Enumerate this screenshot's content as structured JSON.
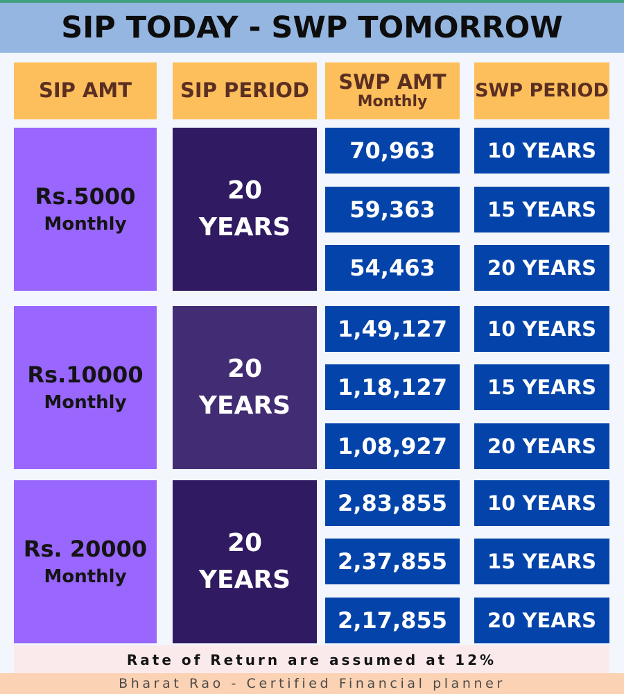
{
  "title": "SIP TODAY - SWP TOMORROW",
  "headers": {
    "sip_amt": "SIP AMT",
    "sip_period": "SIP PERIOD",
    "swp_amt": "SWP AMT",
    "swp_amt_sub": "Monthly",
    "swp_period": "SWP PERIOD"
  },
  "groups": [
    {
      "sip_amount": "Rs.5000",
      "sip_frequency": "Monthly",
      "sip_period_number": "20",
      "sip_period_unit": "YEARS",
      "rows": [
        {
          "swp_amount": "70,963",
          "swp_period": "10 YEARS"
        },
        {
          "swp_amount": "59,363",
          "swp_period": "15 YEARS"
        },
        {
          "swp_amount": "54,463",
          "swp_period": "20 YEARS"
        }
      ]
    },
    {
      "sip_amount": "Rs.10000",
      "sip_frequency": "Monthly",
      "sip_period_number": "20",
      "sip_period_unit": "YEARS",
      "rows": [
        {
          "swp_amount": "1,49,127",
          "swp_period": "10 YEARS"
        },
        {
          "swp_amount": "1,18,127",
          "swp_period": "15 YEARS"
        },
        {
          "swp_amount": "1,08,927",
          "swp_period": "20 YEARS"
        }
      ]
    },
    {
      "sip_amount": "Rs. 20000",
      "sip_frequency": "Monthly",
      "sip_period_number": "20",
      "sip_period_unit": "YEARS",
      "rows": [
        {
          "swp_amount": "2,83,855",
          "swp_period": "10 YEARS"
        },
        {
          "swp_amount": "2,37,855",
          "swp_period": "15 YEARS"
        },
        {
          "swp_amount": "2,17,855",
          "swp_period": "20 YEARS"
        }
      ]
    }
  ],
  "note": "Rate of Return are assumed at 12%",
  "footer": "Bharat Rao - Certified Financial planner",
  "colors": {
    "title_bg": "#94b6e0",
    "header_bg": "#fdbf5c",
    "header_text": "#5b2e22",
    "sip_amount_bg": "#9966fe",
    "sip_period_bg_group1": "#301a62",
    "sip_period_bg_group2": "#422d74",
    "sip_period_bg_group3": "#301a62",
    "swp_cell_bg": "#0444aa",
    "note_bg": "#faeaec",
    "footer_bg": "#fbd2b3"
  }
}
